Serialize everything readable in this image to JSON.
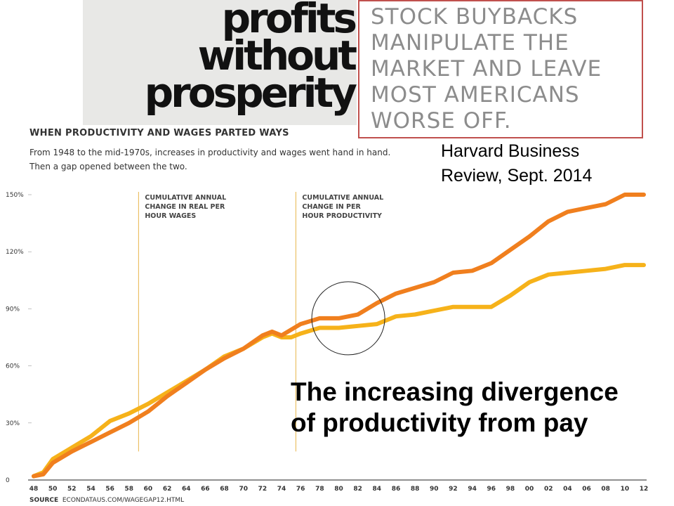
{
  "banner": {
    "title_lines": [
      "profits",
      "without",
      "prosperity"
    ],
    "callout_lines": [
      "STOCK BUYBACKS",
      "MANIPULATE THE",
      "MARKET AND LEAVE",
      "MOST AMERICANS",
      "WORSE OFF."
    ],
    "callout_border_color": "#c0504d"
  },
  "citation_lines": [
    "Harvard Business",
    "Review, Sept. 2014"
  ],
  "caption_lines": [
    "The increasing divergence",
    "of productivity from pay"
  ],
  "source": {
    "label": "SOURCE",
    "text": "ECONDATAUS.COM/WAGEGAP12.HTML"
  },
  "chart_data": {
    "type": "line",
    "title": "WHEN PRODUCTIVITY AND WAGES PARTED WAYS",
    "subtitle_lines": [
      "From 1948 to the mid-1970s, increases in productivity and wages went hand in hand.",
      "Then a gap opened between the two."
    ],
    "x_tick_labels": [
      "48",
      "50",
      "52",
      "54",
      "56",
      "58",
      "60",
      "62",
      "64",
      "66",
      "68",
      "70",
      "72",
      "74",
      "76",
      "78",
      "80",
      "82",
      "84",
      "86",
      "88",
      "90",
      "92",
      "94",
      "96",
      "98",
      "00",
      "02",
      "04",
      "06",
      "08",
      "10",
      "12"
    ],
    "y_ticks": [
      0,
      30,
      60,
      90,
      120,
      150
    ],
    "y_tick_labels": [
      "0",
      "30%",
      "60%",
      "90%",
      "120%",
      "150%"
    ],
    "xlim": [
      1948,
      2012
    ],
    "ylim": [
      0,
      150
    ],
    "grid": false,
    "series": [
      {
        "color": "#f07f1e",
        "x": [
          1948,
          1949,
          1950,
          1952,
          1954,
          1956,
          1958,
          1960,
          1962,
          1964,
          1966,
          1968,
          1970,
          1972,
          1973,
          1974,
          1975,
          1976,
          1978,
          1980,
          1982,
          1984,
          1986,
          1988,
          1990,
          1992,
          1994,
          1996,
          1998,
          2000,
          2002,
          2004,
          2006,
          2008,
          2010,
          2012
        ],
        "values": [
          2,
          3,
          9,
          15,
          20,
          25,
          30,
          36,
          44,
          51,
          58,
          64,
          69,
          76,
          78,
          76,
          79,
          82,
          85,
          85,
          87,
          93,
          98,
          101,
          104,
          109,
          110,
          114,
          121,
          128,
          136,
          141,
          143,
          145,
          150,
          150
        ]
      },
      {
        "color": "#f6b21a",
        "x": [
          1948,
          1949,
          1950,
          1952,
          1954,
          1956,
          1958,
          1960,
          1962,
          1964,
          1966,
          1968,
          1970,
          1972,
          1973,
          1974,
          1975,
          1976,
          1978,
          1980,
          1982,
          1984,
          1986,
          1988,
          1990,
          1992,
          1994,
          1996,
          1998,
          2000,
          2002,
          2004,
          2006,
          2008,
          2010,
          2012
        ],
        "values": [
          2,
          4,
          11,
          17,
          23,
          31,
          35,
          40,
          46,
          52,
          58,
          65,
          69,
          75,
          77,
          75,
          75,
          77,
          80,
          80,
          81,
          82,
          86,
          87,
          89,
          91,
          91,
          91,
          97,
          104,
          108,
          109,
          110,
          111,
          113,
          113
        ]
      }
    ],
    "annotations": [
      {
        "x": 1959,
        "lines": [
          "CUMULATIVE ANNUAL",
          "CHANGE IN REAL PER",
          "HOUR WAGES"
        ]
      },
      {
        "x": 1975.5,
        "lines": [
          "CUMULATIVE ANNUAL",
          "CHANGE IN PER",
          "HOUR PRODUCTIVITY"
        ]
      }
    ],
    "highlight_circle": {
      "cx": 1981,
      "cy": 85
    }
  }
}
